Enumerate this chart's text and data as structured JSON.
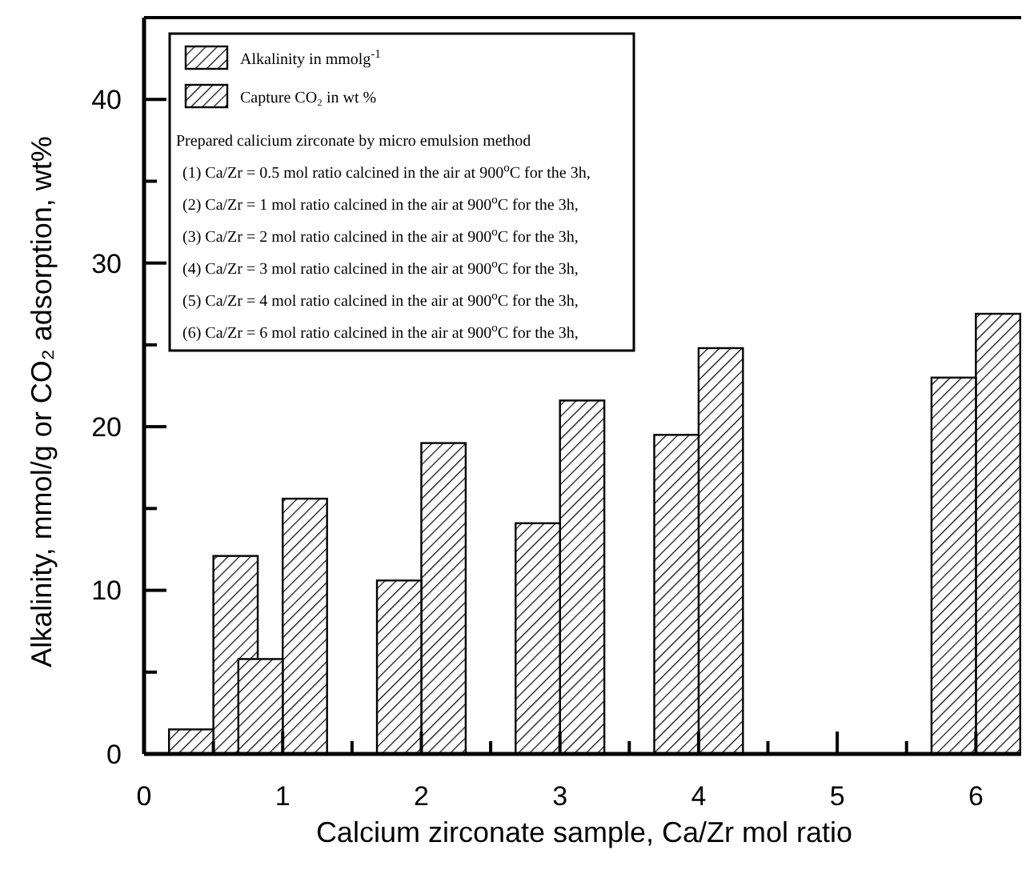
{
  "chart_data": {
    "type": "bar",
    "xlabel": "Calcium zirconate sample, Ca/Zr mol ratio",
    "ylabel": "Alkalinity, mmol/g or CO₂ adsorption, wt%",
    "x": [
      0.5,
      1,
      2,
      3,
      4,
      6
    ],
    "series": [
      {
        "name": "Alkalinity in mmolg$^{-1}$",
        "color": "#000000",
        "values": [
          1.5,
          5.8,
          10.6,
          14.1,
          19.5,
          23.0
        ]
      },
      {
        "name": "Capture CO₂ in wt %",
        "color": "#000000",
        "values": [
          12.1,
          15.6,
          19.0,
          21.6,
          24.8,
          26.9
        ]
      }
    ],
    "xlim": [
      0,
      6.35
    ],
    "xticks": [
      0,
      {
        "value": 0.5,
        "label": null
      },
      1,
      {
        "value": 1.5,
        "label": null
      },
      2,
      {
        "value": 2.5,
        "label": null
      },
      3,
      {
        "value": 3.5,
        "label": null
      },
      4,
      {
        "value": 4.5,
        "label": null
      },
      5,
      {
        "value": 5.5,
        "label": null
      },
      6
    ],
    "ylim": [
      0,
      45
    ],
    "yticks": [
      0,
      {
        "value": 5,
        "label": null
      },
      10,
      {
        "value": 15,
        "label": null
      },
      20,
      {
        "value": 25,
        "label": null
      },
      30,
      {
        "value": 35,
        "label": null
      },
      40
    ],
    "legend": "top left",
    "annotations": [
      "Prepared calicium zirconate by micro emulsion method",
      "(1) Ca/Zr = 0.5 mol ratio calcined in the  air at 900$^{o}$C for the 3h,",
      "(2) Ca/Zr = 1  mol ratio calcined in the  air at 900$^{o}$C for the 3h,",
      "(3) Ca/Zr = 2  mol ratio calcined in the  air at 900$^{o}$C for the 3h,",
      "(4) Ca/Zr = 3  mol ratio calcined in the  air at 900$^{o}$C for the 3h,",
      "(5) Ca/Zr = 4  mol ratio calcined in the  air at 900$^{o}$C for the 3h,",
      "(6) Ca/Zr = 6  mol ratio calcined in the  air at 900$^{o}$C for the 3h,"
    ]
  }
}
